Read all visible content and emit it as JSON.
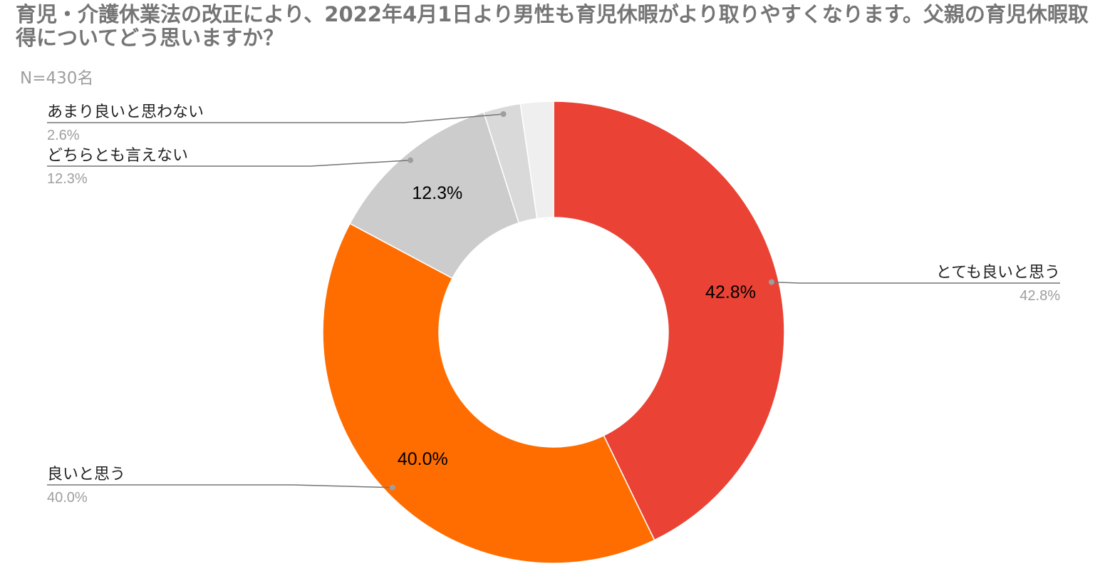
{
  "title": "育児・介護休業法の改正により、2022年4月1日より男性も育児休暇がより取りやすくなります。父親の育児休暇取得についてどう思いますか？",
  "subtitle": "N=430名",
  "chart_data": {
    "type": "pie",
    "donut": true,
    "title": "育児・介護休業法の改正により、2022年4月1日より男性も育児休暇がより取りやすくなります。父親の育児休暇取得についてどう思いますか？",
    "subtitle": "N=430名",
    "slices": [
      {
        "label": "とても良いと思う",
        "value": 42.8,
        "value_label": "42.8%",
        "color": "#EA4335"
      },
      {
        "label": "良いと思う",
        "value": 40.0,
        "value_label": "40.0%",
        "color": "#FF6D01"
      },
      {
        "label": "どちらとも言えない",
        "value": 12.3,
        "value_label": "12.3%",
        "color": "#CCCCCC"
      },
      {
        "label": "あまり良いと思わない",
        "value": 2.6,
        "value_label": "2.6%",
        "color": "#D9D9D9"
      },
      {
        "label": "",
        "value": 2.3,
        "value_label": "",
        "color": "#EFEFEF"
      }
    ],
    "inner_labels": [
      "42.8%",
      "40.0%",
      "12.3%"
    ],
    "legend": "callout-labels"
  }
}
